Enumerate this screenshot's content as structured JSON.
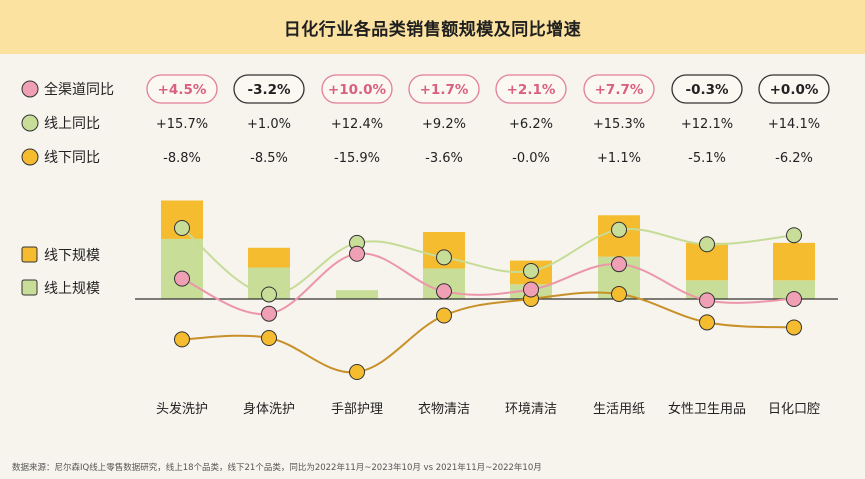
{
  "title": "日化行业各品类销售额规模及同比增速",
  "footer": "数据来源：尼尔森IQ线上零售数据研究，线上18个品类，线下21个品类，同比为2022年11月~2023年10月 vs 2021年11月~2022年10月",
  "colors": {
    "title_bg": "#fbe2a0",
    "all_channel": "#f0a0b4",
    "online": "#c8dd98",
    "offline": "#f5bc30",
    "all_line": "#ec96aa",
    "online_line": "#c6dc96",
    "offline_line": "#c89028"
  },
  "chart_data": {
    "type": "bar",
    "categories": [
      "头发洗护",
      "身体洗护",
      "手部护理",
      "衣物清洁",
      "环境清洁",
      "生活用纸",
      "女性卫生用品",
      "日化口腔"
    ],
    "legend": {
      "all_yoy": "全渠道同比",
      "online_yoy": "线上同比",
      "offline_yoy": "线下同比",
      "offline_scale": "线下规模",
      "online_scale": "线上规模"
    },
    "all_yoy_labels": [
      "+4.5%",
      "-3.2%",
      "+10.0%",
      "+1.7%",
      "+2.1%",
      "+7.7%",
      "-0.3%",
      "+0.0%"
    ],
    "all_yoy": [
      4.5,
      -3.2,
      10.0,
      1.7,
      2.1,
      7.7,
      -0.3,
      0.0
    ],
    "online_yoy_labels": [
      "+15.7%",
      "+1.0%",
      "+12.4%",
      "+9.2%",
      "+6.2%",
      "+15.3%",
      "+12.1%",
      "+14.1%"
    ],
    "online_yoy": [
      15.7,
      1.0,
      12.4,
      9.2,
      6.2,
      15.3,
      12.1,
      14.1
    ],
    "offline_yoy_labels": [
      "-8.8%",
      "-8.5%",
      "-15.9%",
      "-3.6%",
      "-0.0%",
      "+1.1%",
      "-5.1%",
      "-6.2%"
    ],
    "offline_yoy": [
      -8.8,
      -8.5,
      -15.9,
      -3.6,
      -0.0,
      1.1,
      -5.1,
      -6.2
    ],
    "series": [
      {
        "name": "线上规模",
        "values": [
          61,
          32,
          9,
          31,
          15,
          43,
          19,
          19
        ]
      },
      {
        "name": "线下规模",
        "values": [
          39,
          20,
          0,
          37,
          24,
          42,
          38,
          38
        ]
      }
    ],
    "yoy_range": [
      -18,
      18
    ],
    "scale_range": [
      0,
      100
    ]
  }
}
